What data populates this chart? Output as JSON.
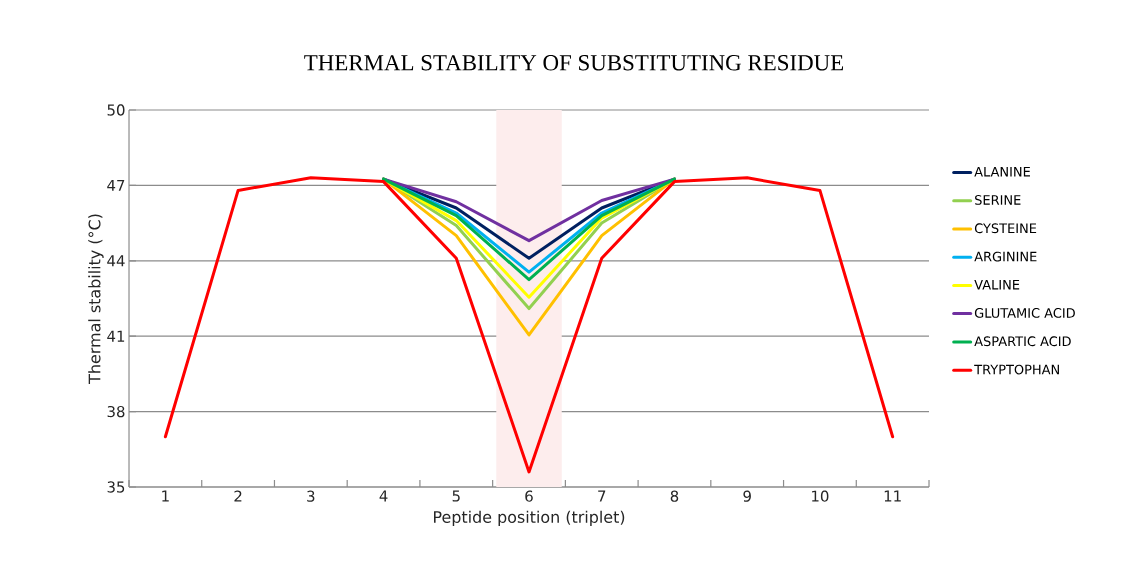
{
  "chart_data": {
    "type": "line",
    "title": "THERMAL STABILITY OF SUBSTITUTING RESIDUE",
    "xlabel": "Peptide position (triplet)",
    "ylabel": "Thermal stability (°C)",
    "x": [
      1,
      2,
      3,
      4,
      5,
      6,
      7,
      8,
      9,
      10,
      11
    ],
    "xlim": [
      0.5,
      11.5
    ],
    "xticks": [
      1,
      2,
      3,
      4,
      5,
      6,
      7,
      8,
      9,
      10,
      11
    ],
    "ylim": [
      35,
      50
    ],
    "yticks": [
      35,
      38,
      41,
      44,
      47,
      50
    ],
    "grid": "y",
    "legend": "right",
    "marker": "none",
    "line_style": "solid",
    "bands": [
      {
        "axis": "x",
        "from": 5.55,
        "to": 6.45,
        "color": "#fdeded"
      }
    ],
    "series": [
      {
        "name": "ALANINE",
        "color": "#002060",
        "values": [
          null,
          null,
          null,
          47.25,
          46.1,
          44.1,
          46.1,
          47.25,
          null,
          null,
          null
        ]
      },
      {
        "name": "SERINE",
        "color": "#92d050",
        "values": [
          null,
          null,
          null,
          47.25,
          45.4,
          42.1,
          45.5,
          47.25,
          null,
          null,
          null
        ]
      },
      {
        "name": "CYSTEINE",
        "color": "#ffc000",
        "values": [
          null,
          null,
          null,
          47.25,
          45.0,
          41.05,
          45.0,
          47.25,
          null,
          null,
          null
        ]
      },
      {
        "name": "ARGININE",
        "color": "#00b0f0",
        "values": [
          null,
          null,
          null,
          47.25,
          45.9,
          43.55,
          45.9,
          47.25,
          null,
          null,
          null
        ]
      },
      {
        "name": "VALINE",
        "color": "#ffff00",
        "values": [
          null,
          null,
          null,
          47.25,
          45.6,
          42.55,
          45.7,
          47.25,
          null,
          null,
          null
        ]
      },
      {
        "name": "GLUTAMIC ACID",
        "color": "#7030a0",
        "values": [
          null,
          null,
          null,
          47.25,
          46.35,
          44.8,
          46.4,
          47.25,
          null,
          null,
          null
        ]
      },
      {
        "name": "ASPARTIC ACID",
        "color": "#00b050",
        "values": [
          null,
          null,
          null,
          47.25,
          45.8,
          43.25,
          45.8,
          47.25,
          null,
          null,
          null
        ]
      },
      {
        "name": "TRYPTOPHAN",
        "color": "#ff0000",
        "values": [
          37.0,
          46.8,
          47.3,
          47.15,
          44.1,
          35.6,
          44.1,
          47.15,
          47.3,
          46.8,
          37.0
        ]
      }
    ]
  }
}
